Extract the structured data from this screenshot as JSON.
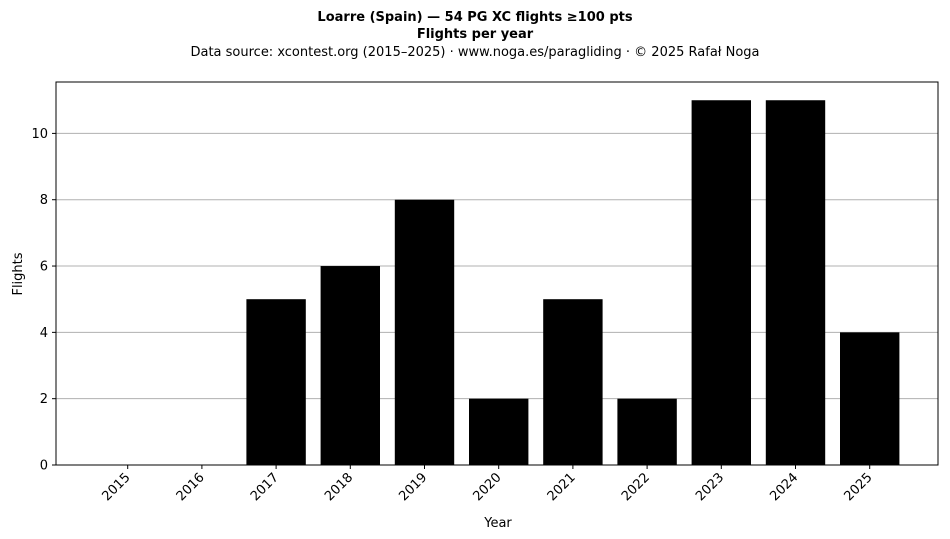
{
  "chart_data": {
    "type": "bar",
    "title": "Loarre (Spain)  —  54 PG XC flights ≥100 pts",
    "subtitle": "Flights per year",
    "source": "Data source: xcontest.org (2015–2025)  ·  www.noga.es/paragliding  ·  © 2025 Rafał Noga",
    "xlabel": "Year",
    "ylabel": "Flights",
    "categories": [
      "2015",
      "2016",
      "2017",
      "2018",
      "2019",
      "2020",
      "2021",
      "2022",
      "2023",
      "2024",
      "2025"
    ],
    "values": [
      0,
      0,
      5,
      6,
      8,
      2,
      5,
      2,
      11,
      11,
      4
    ],
    "ylim": [
      0,
      11.55
    ],
    "yticks": [
      "0",
      "2",
      "4",
      "6",
      "8",
      "10"
    ],
    "grid": "horizontal",
    "bar_color": "#000000",
    "grid_color": "#b0b0b0"
  }
}
